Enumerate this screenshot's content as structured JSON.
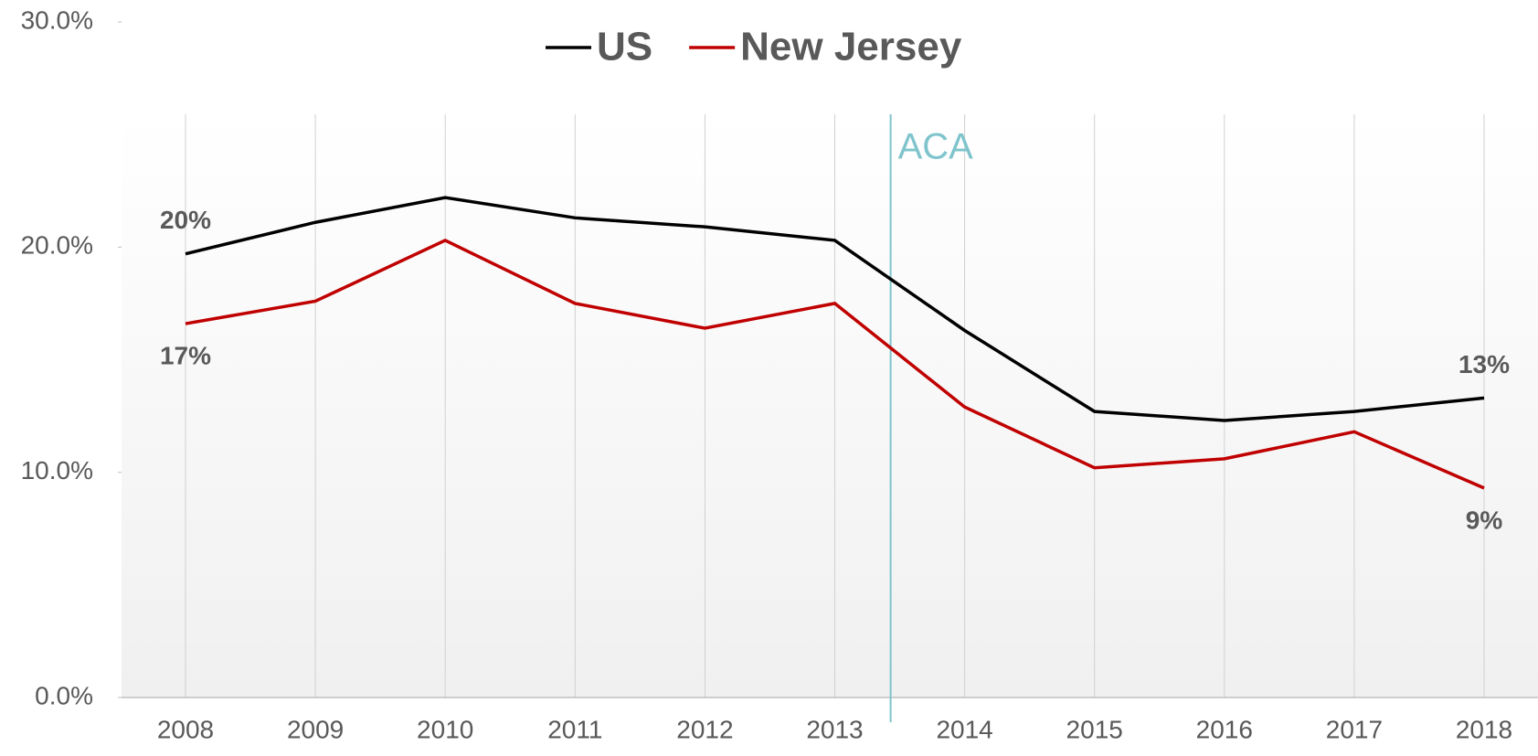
{
  "chart_data": {
    "type": "line",
    "categories": [
      "2008",
      "2009",
      "2010",
      "2011",
      "2012",
      "2013",
      "2014",
      "2015",
      "2016",
      "2017",
      "2018"
    ],
    "series": [
      {
        "name": "US",
        "color": "#000000",
        "values": [
          19.7,
          21.1,
          22.2,
          21.3,
          20.9,
          20.3,
          16.3,
          12.7,
          12.3,
          12.7,
          13.3
        ],
        "value_labels": [
          "20%",
          null,
          null,
          null,
          null,
          null,
          null,
          null,
          null,
          null,
          "13%"
        ]
      },
      {
        "name": "New Jersey",
        "color": "#c00000",
        "values": [
          16.6,
          17.6,
          20.3,
          17.5,
          16.4,
          17.5,
          12.9,
          10.2,
          10.6,
          11.8,
          9.3
        ],
        "value_labels": [
          "17%",
          null,
          null,
          null,
          null,
          null,
          null,
          null,
          null,
          null,
          "9%"
        ]
      }
    ],
    "annotations": [
      {
        "text": "ACA",
        "color": "#7fc4cc"
      }
    ],
    "ylim": [
      0,
      30
    ],
    "yticks": [
      {
        "value": 0,
        "label": "0.0%"
      },
      {
        "value": 10,
        "label": "10.0%"
      },
      {
        "value": 20,
        "label": "20.0%"
      },
      {
        "value": 30,
        "label": "30.0%"
      }
    ],
    "legend": "top",
    "grid": "vertical"
  }
}
